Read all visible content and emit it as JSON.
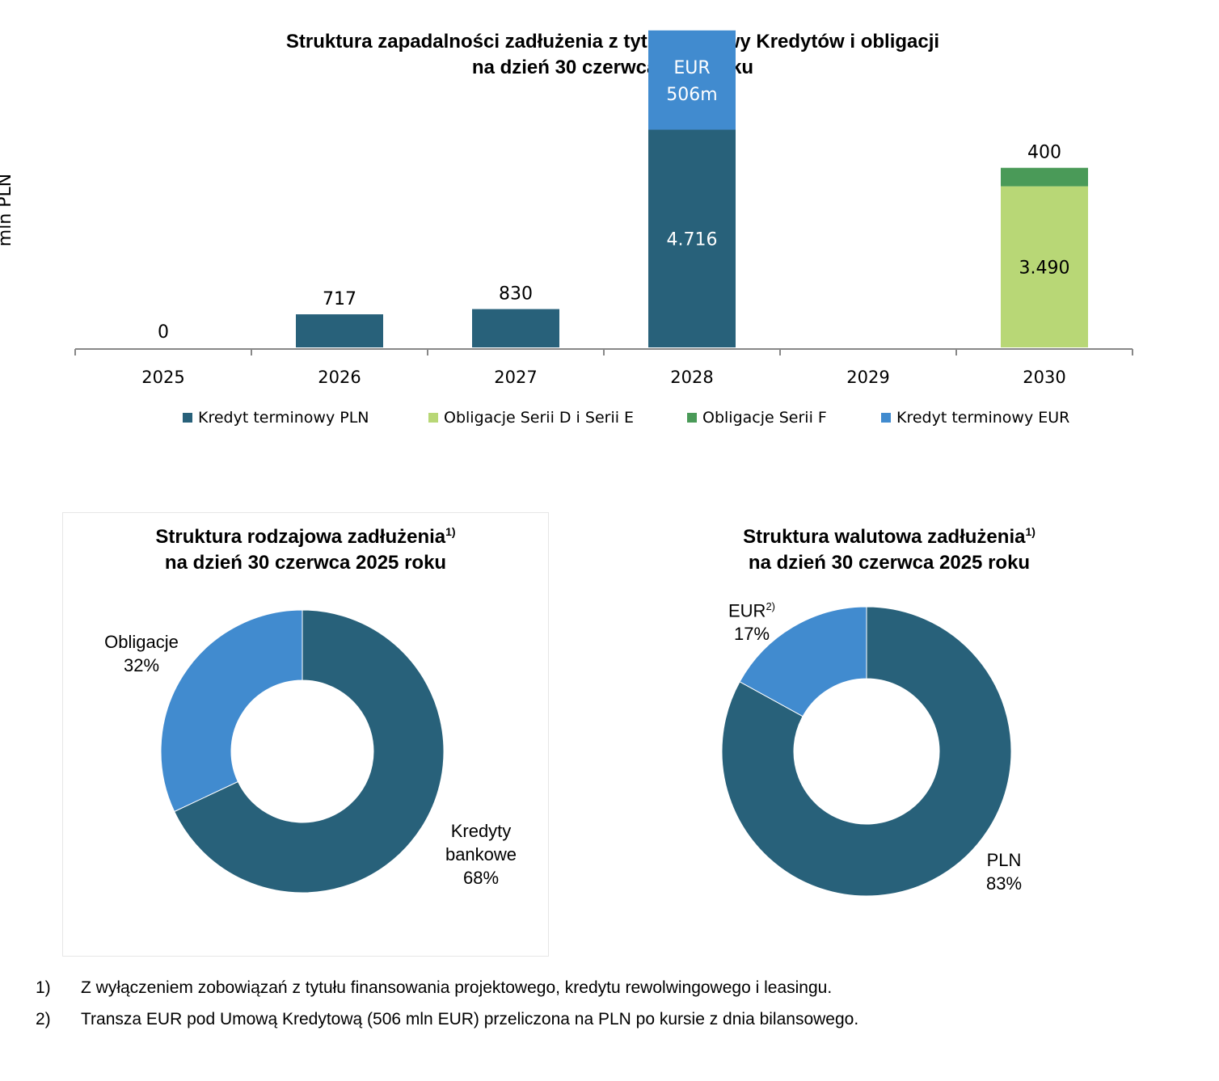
{
  "bar_chart": {
    "title_line1": "Struktura zapadalności zadłużenia z tytułu Umowy Kredytów i obligacji",
    "title_line2": "na dzień 30 czerwca 2025 roku",
    "ylabel": "mln PLN"
  },
  "pie1": {
    "title_line1": "Struktura rodzajowa zadłużenia",
    "title_sup": "1)",
    "title_line2": "na dzień 30 czerwca 2025 roku",
    "label_obligacje": "Obligacje",
    "pct_obligacje": "32%",
    "label_kredyty_1": "Kredyty",
    "label_kredyty_2": "bankowe",
    "pct_kredyty": "68%"
  },
  "pie2": {
    "title_line1": "Struktura walutowa zadłużenia",
    "title_sup": "1)",
    "title_line2": "na dzień 30 czerwca 2025 roku",
    "label_eur": "EUR",
    "label_eur_sup": "2)",
    "pct_eur": "17%",
    "label_pln": "PLN",
    "pct_pln": "83%"
  },
  "footnotes": [
    {
      "num": "1)",
      "text": "Z wyłączeniem zobowiązań z tytułu finansowania projektowego, kredytu rewolwingowego i leasingu."
    },
    {
      "num": "2)",
      "text": "Transza EUR pod Umową Kredytową (506 mln EUR) przeliczona na PLN po kursie z dnia bilansowego."
    }
  ],
  "colors": {
    "kredyt_pln": "#28617A",
    "obligacje_de": "#B8D776",
    "obligacje_f": "#4A9A58",
    "kredyt_eur": "#418BCF"
  },
  "chart_data": [
    {
      "type": "bar",
      "stacked": true,
      "title": "Struktura zapadalności zadłużenia z tytułu Umowy Kredytów i obligacji na dzień 30 czerwca 2025 roku",
      "ylabel": "mln PLN",
      "categories": [
        "2025",
        "2026",
        "2027",
        "2028",
        "2029",
        "2030"
      ],
      "series": [
        {
          "name": "Kredyt terminowy PLN",
          "color": "#28617A",
          "values": [
            0,
            717,
            830,
            4716,
            0,
            0
          ]
        },
        {
          "name": "Obligacje Serii D i Serii E",
          "color": "#B8D776",
          "values": [
            0,
            0,
            0,
            0,
            0,
            3490
          ]
        },
        {
          "name": "Obligacje Serii F",
          "color": "#4A9A58",
          "values": [
            0,
            0,
            0,
            0,
            0,
            400
          ]
        },
        {
          "name": "Kredyt terminowy EUR",
          "color": "#418BCF",
          "values": [
            0,
            0,
            0,
            2150,
            0,
            0
          ]
        }
      ],
      "data_labels": [
        {
          "category": "2025",
          "series": "Kredyt terminowy PLN",
          "text": "0",
          "position": "above"
        },
        {
          "category": "2026",
          "series": "Kredyt terminowy PLN",
          "text": "717",
          "position": "above"
        },
        {
          "category": "2027",
          "series": "Kredyt terminowy PLN",
          "text": "830",
          "position": "above"
        },
        {
          "category": "2028",
          "series": "Kredyt terminowy PLN",
          "text": "4.716",
          "position": "inside"
        },
        {
          "category": "2028",
          "series": "Kredyt terminowy EUR",
          "text": "EUR 506m",
          "position": "inside"
        },
        {
          "category": "2030",
          "series": "Obligacje Serii D i Serii E",
          "text": "3.490",
          "position": "inside"
        },
        {
          "category": "2030",
          "series": "Obligacje Serii F",
          "text": "400",
          "position": "above"
        }
      ],
      "ylim": [
        0,
        7000
      ],
      "grid": false,
      "legend": "bottom"
    },
    {
      "type": "pie",
      "donut": true,
      "title": "Struktura rodzajowa zadłużenia 1) na dzień 30 czerwca 2025 roku",
      "slices": [
        {
          "label": "Kredyty bankowe",
          "value": 68,
          "color": "#28617A"
        },
        {
          "label": "Obligacje",
          "value": 32,
          "color": "#418BCF"
        }
      ]
    },
    {
      "type": "pie",
      "donut": true,
      "title": "Struktura walutowa zadłużenia 1) na dzień 30 czerwca 2025 roku",
      "slices": [
        {
          "label": "PLN",
          "value": 83,
          "color": "#28617A"
        },
        {
          "label": "EUR",
          "value": 17,
          "color": "#418BCF"
        }
      ]
    }
  ]
}
